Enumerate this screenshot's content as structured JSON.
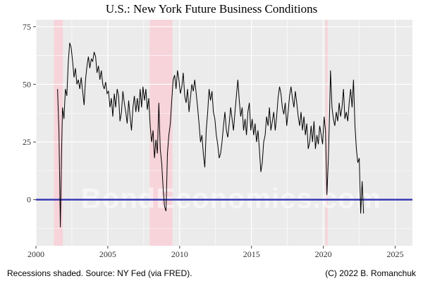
{
  "chart_data": {
    "type": "line",
    "title": "U.S.: New York Future Business Conditions",
    "xlabel": "",
    "ylabel": "",
    "xlim": [
      2000,
      2026.2
    ],
    "ylim": [
      -20,
      78
    ],
    "x_ticks": [
      2000,
      2005,
      2010,
      2015,
      2020,
      2025
    ],
    "y_ticks": [
      0,
      25,
      50,
      75
    ],
    "x_tick_labels": [
      "2000",
      "2005",
      "2010",
      "2015",
      "2020",
      "2025"
    ],
    "y_tick_labels": [
      "0",
      "25",
      "50",
      "75"
    ],
    "grid": true,
    "background": "#ebebeb",
    "line_color": "#000000",
    "zero_line": {
      "y": 0,
      "color": "#3b3bb5"
    },
    "recessions": [
      {
        "start": 2001.25,
        "end": 2001.87
      },
      {
        "start": 2007.92,
        "end": 2009.5
      },
      {
        "start": 2020.13,
        "end": 2020.3
      }
    ],
    "recession_color": "#f7d3da",
    "series": [
      {
        "values": [
          [
            2001.5,
            48
          ],
          [
            2001.6,
            30
          ],
          [
            2001.7,
            -12
          ],
          [
            2001.78,
            20
          ],
          [
            2001.85,
            40
          ],
          [
            2001.95,
            35
          ],
          [
            2002.05,
            48
          ],
          [
            2002.15,
            45
          ],
          [
            2002.25,
            60
          ],
          [
            2002.35,
            68
          ],
          [
            2002.45,
            66
          ],
          [
            2002.55,
            60
          ],
          [
            2002.65,
            53
          ],
          [
            2002.75,
            57
          ],
          [
            2002.85,
            50
          ],
          [
            2002.95,
            52
          ],
          [
            2003.05,
            48
          ],
          [
            2003.15,
            53
          ],
          [
            2003.25,
            47
          ],
          [
            2003.35,
            41
          ],
          [
            2003.45,
            52
          ],
          [
            2003.55,
            58
          ],
          [
            2003.65,
            62
          ],
          [
            2003.75,
            57
          ],
          [
            2003.85,
            61
          ],
          [
            2003.95,
            60
          ],
          [
            2004.05,
            64
          ],
          [
            2004.15,
            62
          ],
          [
            2004.25,
            55
          ],
          [
            2004.35,
            58
          ],
          [
            2004.45,
            52
          ],
          [
            2004.55,
            56
          ],
          [
            2004.65,
            50
          ],
          [
            2004.75,
            48
          ],
          [
            2004.85,
            51
          ],
          [
            2004.95,
            46
          ],
          [
            2005.05,
            47
          ],
          [
            2005.15,
            40
          ],
          [
            2005.25,
            44
          ],
          [
            2005.35,
            36
          ],
          [
            2005.45,
            46
          ],
          [
            2005.55,
            40
          ],
          [
            2005.65,
            48
          ],
          [
            2005.75,
            45
          ],
          [
            2005.85,
            34
          ],
          [
            2005.95,
            38
          ],
          [
            2006.05,
            47
          ],
          [
            2006.15,
            42
          ],
          [
            2006.25,
            38
          ],
          [
            2006.35,
            33
          ],
          [
            2006.45,
            43
          ],
          [
            2006.55,
            36
          ],
          [
            2006.65,
            30
          ],
          [
            2006.75,
            40
          ],
          [
            2006.85,
            45
          ],
          [
            2006.95,
            38
          ],
          [
            2007.05,
            44
          ],
          [
            2007.15,
            38
          ],
          [
            2007.25,
            48
          ],
          [
            2007.35,
            40
          ],
          [
            2007.45,
            49
          ],
          [
            2007.55,
            43
          ],
          [
            2007.65,
            48
          ],
          [
            2007.75,
            39
          ],
          [
            2007.85,
            44
          ],
          [
            2007.95,
            32
          ],
          [
            2008.05,
            25
          ],
          [
            2008.15,
            30
          ],
          [
            2008.25,
            18
          ],
          [
            2008.35,
            26
          ],
          [
            2008.45,
            20
          ],
          [
            2008.55,
            42
          ],
          [
            2008.65,
            22
          ],
          [
            2008.75,
            16
          ],
          [
            2008.85,
            5
          ],
          [
            2008.95,
            -3
          ],
          [
            2009.05,
            -5
          ],
          [
            2009.15,
            20
          ],
          [
            2009.25,
            28
          ],
          [
            2009.35,
            33
          ],
          [
            2009.45,
            43
          ],
          [
            2009.55,
            52
          ],
          [
            2009.65,
            54
          ],
          [
            2009.75,
            48
          ],
          [
            2009.85,
            56
          ],
          [
            2009.95,
            52
          ],
          [
            2010.05,
            46
          ],
          [
            2010.15,
            49
          ],
          [
            2010.25,
            55
          ],
          [
            2010.35,
            45
          ],
          [
            2010.45,
            42
          ],
          [
            2010.55,
            48
          ],
          [
            2010.65,
            38
          ],
          [
            2010.75,
            44
          ],
          [
            2010.85,
            50
          ],
          [
            2010.95,
            47
          ],
          [
            2011.05,
            52
          ],
          [
            2011.15,
            46
          ],
          [
            2011.25,
            40
          ],
          [
            2011.35,
            33
          ],
          [
            2011.45,
            25
          ],
          [
            2011.55,
            28
          ],
          [
            2011.65,
            20
          ],
          [
            2011.75,
            14
          ],
          [
            2011.85,
            30
          ],
          [
            2011.95,
            38
          ],
          [
            2012.05,
            48
          ],
          [
            2012.15,
            43
          ],
          [
            2012.25,
            47
          ],
          [
            2012.35,
            38
          ],
          [
            2012.45,
            35
          ],
          [
            2012.55,
            28
          ],
          [
            2012.65,
            24
          ],
          [
            2012.75,
            18
          ],
          [
            2012.85,
            20
          ],
          [
            2012.95,
            25
          ],
          [
            2013.05,
            32
          ],
          [
            2013.15,
            38
          ],
          [
            2013.25,
            30
          ],
          [
            2013.35,
            27
          ],
          [
            2013.45,
            33
          ],
          [
            2013.55,
            40
          ],
          [
            2013.65,
            35
          ],
          [
            2013.75,
            30
          ],
          [
            2013.85,
            38
          ],
          [
            2013.95,
            45
          ],
          [
            2014.05,
            52
          ],
          [
            2014.15,
            43
          ],
          [
            2014.25,
            36
          ],
          [
            2014.35,
            40
          ],
          [
            2014.45,
            30
          ],
          [
            2014.55,
            35
          ],
          [
            2014.65,
            28
          ],
          [
            2014.75,
            38
          ],
          [
            2014.85,
            42
          ],
          [
            2014.95,
            30
          ],
          [
            2015.05,
            35
          ],
          [
            2015.15,
            28
          ],
          [
            2015.25,
            33
          ],
          [
            2015.35,
            25
          ],
          [
            2015.45,
            30
          ],
          [
            2015.55,
            22
          ],
          [
            2015.65,
            12
          ],
          [
            2015.75,
            16
          ],
          [
            2015.85,
            25
          ],
          [
            2015.95,
            28
          ],
          [
            2016.05,
            36
          ],
          [
            2016.15,
            32
          ],
          [
            2016.25,
            40
          ],
          [
            2016.35,
            30
          ],
          [
            2016.45,
            34
          ],
          [
            2016.55,
            38
          ],
          [
            2016.65,
            30
          ],
          [
            2016.75,
            36
          ],
          [
            2016.85,
            44
          ],
          [
            2016.95,
            49
          ],
          [
            2017.05,
            46
          ],
          [
            2017.15,
            40
          ],
          [
            2017.25,
            37
          ],
          [
            2017.35,
            42
          ],
          [
            2017.45,
            32
          ],
          [
            2017.55,
            38
          ],
          [
            2017.65,
            45
          ],
          [
            2017.75,
            49
          ],
          [
            2017.85,
            44
          ],
          [
            2017.95,
            40
          ],
          [
            2018.05,
            47
          ],
          [
            2018.15,
            42
          ],
          [
            2018.25,
            36
          ],
          [
            2018.35,
            32
          ],
          [
            2018.45,
            38
          ],
          [
            2018.55,
            30
          ],
          [
            2018.65,
            36
          ],
          [
            2018.75,
            28
          ],
          [
            2018.85,
            33
          ],
          [
            2018.95,
            22
          ],
          [
            2019.05,
            25
          ],
          [
            2019.15,
            32
          ],
          [
            2019.25,
            25
          ],
          [
            2019.35,
            34
          ],
          [
            2019.45,
            22
          ],
          [
            2019.55,
            28
          ],
          [
            2019.65,
            24
          ],
          [
            2019.75,
            32
          ],
          [
            2019.85,
            28
          ],
          [
            2019.95,
            24
          ],
          [
            2020.05,
            36
          ],
          [
            2020.15,
            30
          ],
          [
            2020.25,
            2
          ],
          [
            2020.35,
            18
          ],
          [
            2020.45,
            42
          ],
          [
            2020.5,
            56
          ],
          [
            2020.6,
            40
          ],
          [
            2020.7,
            35
          ],
          [
            2020.8,
            32
          ],
          [
            2020.9,
            38
          ],
          [
            2021.0,
            34
          ],
          [
            2021.1,
            42
          ],
          [
            2021.2,
            36
          ],
          [
            2021.3,
            40
          ],
          [
            2021.4,
            48
          ],
          [
            2021.5,
            35
          ],
          [
            2021.6,
            38
          ],
          [
            2021.7,
            34
          ],
          [
            2021.8,
            42
          ],
          [
            2021.9,
            48
          ],
          [
            2022.0,
            40
          ],
          [
            2022.1,
            52
          ],
          [
            2022.2,
            32
          ],
          [
            2022.3,
            22
          ],
          [
            2022.4,
            16
          ],
          [
            2022.5,
            18
          ],
          [
            2022.6,
            -6
          ],
          [
            2022.7,
            8
          ],
          [
            2022.8,
            -6
          ]
        ]
      }
    ]
  },
  "watermark": "BondEconomics.com",
  "footer": {
    "left": "Recessions shaded. Source: NY Fed (via FRED).",
    "right": "(C) 2022 B. Romanchuk"
  }
}
